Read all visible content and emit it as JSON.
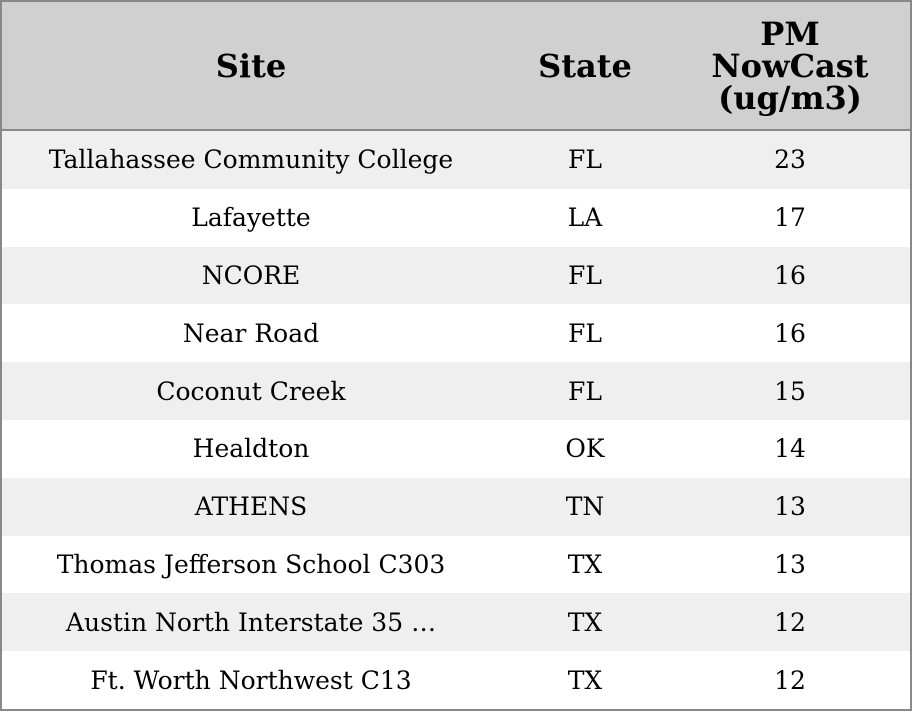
{
  "table": {
    "columns": [
      "Site",
      "State",
      "PM NowCast (ug/m3)"
    ],
    "rows": [
      [
        "Tallahassee Community College",
        "FL",
        23
      ],
      [
        "Lafayette",
        "LA",
        17
      ],
      [
        "NCORE",
        "FL",
        16
      ],
      [
        "Near Road",
        "FL",
        16
      ],
      [
        "Coconut Creek",
        "FL",
        15
      ],
      [
        "Healdton",
        "OK",
        14
      ],
      [
        "ATHENS",
        "TN",
        13
      ],
      [
        "Thomas Jefferson School C303",
        "TX",
        13
      ],
      [
        "Austin North Interstate 35 …",
        "TX",
        12
      ],
      [
        "Ft. Worth Northwest C13",
        "TX",
        12
      ]
    ]
  }
}
